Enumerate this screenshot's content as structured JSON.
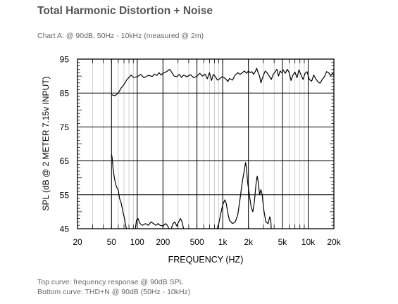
{
  "header": {
    "title": "Total Harmonic Distortion + Noise",
    "subtitle": "Chart A: @ 90dB, 50Hz - 10kHz (measured @ 2m)"
  },
  "notes": {
    "top": "Top curve: frequency response @ 90dB SPL",
    "bottom": "Bottom curve: THD+N @ 90dB (50Hz - 10kHz)"
  },
  "chart_data": {
    "type": "line",
    "title": "",
    "xlabel": "FREQUENCY  (HZ)",
    "ylabel": "SPL (dB @ 2 METER 7.15v  INPUT)",
    "xscale": "log",
    "xlim": [
      20,
      20000
    ],
    "ylim": [
      45,
      95
    ],
    "grid": true,
    "legend": "none",
    "x_ticks": [
      {
        "value": 20,
        "label": "20"
      },
      {
        "value": 50,
        "label": "50"
      },
      {
        "value": 100,
        "label": "100"
      },
      {
        "value": 200,
        "label": "200"
      },
      {
        "value": 500,
        "label": "500"
      },
      {
        "value": 1000,
        "label": "1k"
      },
      {
        "value": 2000,
        "label": "2k"
      },
      {
        "value": 5000,
        "label": "5k"
      },
      {
        "value": 10000,
        "label": "10k"
      },
      {
        "value": 20000,
        "label": "20k"
      }
    ],
    "y_ticks": [
      {
        "value": 95,
        "label": "95"
      },
      {
        "value": 85,
        "label": "85"
      },
      {
        "value": 75,
        "label": "75"
      },
      {
        "value": 65,
        "label": "65"
      },
      {
        "value": 55,
        "label": "55"
      },
      {
        "value": 45,
        "label": "45"
      }
    ],
    "series": [
      {
        "color": "#000000",
        "points": [
          [
            50,
            84.5
          ],
          [
            55,
            84.2
          ],
          [
            60,
            85.0
          ],
          [
            65,
            86.5
          ],
          [
            70,
            87.5
          ],
          [
            75,
            88.8
          ],
          [
            80,
            89.6
          ],
          [
            85,
            90.3
          ],
          [
            90,
            89.6
          ],
          [
            100,
            89.8
          ],
          [
            110,
            90.5
          ],
          [
            120,
            89.5
          ],
          [
            135,
            90.2
          ],
          [
            150,
            89.9
          ],
          [
            160,
            90.6
          ],
          [
            170,
            90.2
          ],
          [
            180,
            91.0
          ],
          [
            190,
            90.3
          ],
          [
            200,
            90.8
          ],
          [
            220,
            91.3
          ],
          [
            240,
            92.0
          ],
          [
            255,
            91.0
          ],
          [
            270,
            90.0
          ],
          [
            290,
            89.8
          ],
          [
            310,
            90.5
          ],
          [
            330,
            89.6
          ],
          [
            350,
            90.3
          ],
          [
            380,
            89.8
          ],
          [
            420,
            90.4
          ],
          [
            460,
            89.5
          ],
          [
            500,
            90.0
          ],
          [
            540,
            90.8
          ],
          [
            580,
            90.0
          ],
          [
            620,
            90.6
          ],
          [
            660,
            89.2
          ],
          [
            700,
            91.0
          ],
          [
            740,
            88.7
          ],
          [
            780,
            90.5
          ],
          [
            820,
            89.8
          ],
          [
            870,
            88.8
          ],
          [
            920,
            89.2
          ],
          [
            980,
            89.8
          ],
          [
            1040,
            89.5
          ],
          [
            1100,
            89.0
          ],
          [
            1150,
            88.4
          ],
          [
            1200,
            89.3
          ],
          [
            1300,
            88.8
          ],
          [
            1400,
            90.3
          ],
          [
            1500,
            91.0
          ],
          [
            1600,
            90.5
          ],
          [
            1700,
            91.0
          ],
          [
            1800,
            91.5
          ],
          [
            1900,
            90.8
          ],
          [
            2000,
            91.5
          ],
          [
            2100,
            91.0
          ],
          [
            2200,
            91.3
          ],
          [
            2300,
            90.5
          ],
          [
            2400,
            91.3
          ],
          [
            2500,
            92.3
          ],
          [
            2600,
            91.0
          ],
          [
            2700,
            90.0
          ],
          [
            2800,
            88.0
          ],
          [
            2900,
            89.2
          ],
          [
            3000,
            90.3
          ],
          [
            3150,
            91.5
          ],
          [
            3300,
            91.0
          ],
          [
            3500,
            90.0
          ],
          [
            3700,
            89.0
          ],
          [
            3900,
            90.5
          ],
          [
            4100,
            91.2
          ],
          [
            4300,
            92.0
          ],
          [
            4500,
            90.0
          ],
          [
            4700,
            91.5
          ],
          [
            4900,
            91.0
          ],
          [
            5100,
            91.8
          ],
          [
            5400,
            90.8
          ],
          [
            5700,
            92.0
          ],
          [
            6000,
            91.0
          ],
          [
            6300,
            88.7
          ],
          [
            6600,
            90.2
          ],
          [
            7000,
            91.2
          ],
          [
            7400,
            89.5
          ],
          [
            7800,
            91.8
          ],
          [
            8200,
            90.5
          ],
          [
            8700,
            89.0
          ],
          [
            9200,
            90.8
          ],
          [
            9700,
            91.3
          ],
          [
            10300,
            89.0
          ],
          [
            11000,
            88.5
          ],
          [
            11600,
            90.3
          ],
          [
            12300,
            89.2
          ],
          [
            13000,
            88.3
          ],
          [
            13800,
            87.9
          ],
          [
            14600,
            89.0
          ],
          [
            15500,
            89.8
          ],
          [
            16400,
            91.3
          ],
          [
            17300,
            91.0
          ],
          [
            18300,
            90.2
          ],
          [
            19300,
            90.8
          ],
          [
            20000,
            90.3
          ]
        ]
      },
      {
        "color": "#000000",
        "points": [
          [
            50,
            67.0
          ],
          [
            51,
            65.8
          ],
          [
            52,
            63.0
          ],
          [
            54,
            60.0
          ],
          [
            56,
            58.0
          ],
          [
            58,
            57.0
          ],
          [
            60,
            56.5
          ],
          [
            62,
            54.0
          ],
          [
            65,
            52.5
          ],
          [
            68,
            50.0
          ],
          [
            71,
            48.0
          ],
          [
            73,
            46.0
          ],
          [
            75,
            45.0
          ]
        ]
      },
      {
        "color": "#000000",
        "points": [
          [
            95,
            45.0
          ],
          [
            98,
            47.5
          ],
          [
            102,
            48.0
          ],
          [
            108,
            46.5
          ],
          [
            115,
            46.0
          ],
          [
            125,
            46.5
          ],
          [
            135,
            46.0
          ],
          [
            145,
            47.0
          ],
          [
            155,
            46.5
          ],
          [
            165,
            46.0
          ],
          [
            175,
            46.5
          ],
          [
            185,
            46.0
          ],
          [
            200,
            45.8
          ],
          [
            215,
            46.5
          ],
          [
            225,
            46.0
          ],
          [
            235,
            45.0
          ]
        ]
      },
      {
        "color": "#000000",
        "points": [
          [
            250,
            45.0
          ],
          [
            262,
            46.5
          ],
          [
            275,
            47.0
          ],
          [
            290,
            45.8
          ],
          [
            305,
            47.0
          ],
          [
            320,
            48.0
          ],
          [
            335,
            47.0
          ],
          [
            345,
            45.5
          ],
          [
            350,
            45.0
          ]
        ]
      },
      {
        "color": "#000000",
        "points": [
          [
            860,
            45.0
          ],
          [
            900,
            46.5
          ],
          [
            950,
            49.5
          ],
          [
            1000,
            52.0
          ],
          [
            1060,
            53.5
          ],
          [
            1100,
            52.5
          ],
          [
            1150,
            49.5
          ],
          [
            1200,
            47.5
          ],
          [
            1300,
            46.5
          ],
          [
            1400,
            47.0
          ],
          [
            1500,
            49.0
          ],
          [
            1600,
            54.0
          ],
          [
            1700,
            59.0
          ],
          [
            1800,
            62.5
          ],
          [
            1850,
            64.5
          ],
          [
            1900,
            63.0
          ],
          [
            1950,
            59.0
          ],
          [
            2050,
            55.0
          ],
          [
            2150,
            51.5
          ],
          [
            2250,
            50.0
          ],
          [
            2350,
            53.0
          ],
          [
            2450,
            58.0
          ],
          [
            2530,
            60.5
          ],
          [
            2600,
            59.0
          ],
          [
            2700,
            55.0
          ],
          [
            2800,
            56.5
          ],
          [
            2900,
            55.0
          ],
          [
            2950,
            53.0
          ],
          [
            3050,
            50.0
          ],
          [
            3200,
            47.0
          ],
          [
            3400,
            46.5
          ],
          [
            3550,
            48.5
          ],
          [
            3650,
            47.5
          ],
          [
            3700,
            45.0
          ]
        ]
      }
    ]
  }
}
